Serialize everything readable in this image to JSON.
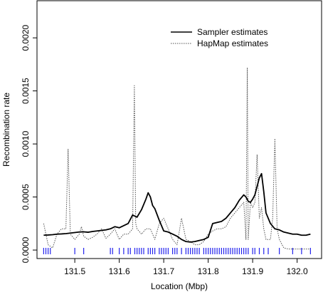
{
  "chart_data": {
    "type": "line",
    "title": "",
    "xlabel": "Location (Mbp)",
    "ylabel": "Recombination rate",
    "xlim": [
      131.415,
      132.055
    ],
    "ylim": [
      -8e-05,
      0.00235
    ],
    "xticks": [
      {
        "value": 131.5,
        "label": "131.5"
      },
      {
        "value": 131.6,
        "label": "131.6"
      },
      {
        "value": 131.7,
        "label": "131.7"
      },
      {
        "value": 131.8,
        "label": "131.8"
      },
      {
        "value": 131.9,
        "label": "131.9"
      },
      {
        "value": 132.0,
        "label": "132.0"
      }
    ],
    "yticks": [
      {
        "value": 0.0,
        "label": "0.0000"
      },
      {
        "value": 0.0005,
        "label": "0.0005"
      },
      {
        "value": 0.001,
        "label": "0.0010"
      },
      {
        "value": 0.0015,
        "label": "0.0015"
      },
      {
        "value": 0.002,
        "label": "0.0020"
      }
    ],
    "grid": false,
    "legend_position": "top-right",
    "series": [
      {
        "name": "Sampler estimates",
        "style": "solid",
        "color": "#000000",
        "x": [
          131.43,
          131.44,
          131.45,
          131.46,
          131.47,
          131.48,
          131.49,
          131.5,
          131.51,
          131.52,
          131.53,
          131.54,
          131.55,
          131.56,
          131.57,
          131.58,
          131.59,
          131.6,
          131.61,
          131.62,
          131.63,
          131.64,
          131.65,
          131.66,
          131.665,
          131.67,
          131.675,
          131.68,
          131.69,
          131.7,
          131.71,
          131.72,
          131.73,
          131.74,
          131.75,
          131.76,
          131.77,
          131.78,
          131.79,
          131.8,
          131.81,
          131.82,
          131.83,
          131.84,
          131.85,
          131.86,
          131.87,
          131.88,
          131.885,
          131.89,
          131.895,
          131.9,
          131.905,
          131.91,
          131.915,
          131.92,
          131.925,
          131.93,
          131.94,
          131.95,
          131.96,
          131.97,
          131.98,
          131.99,
          132.0,
          132.01,
          132.02,
          132.03
        ],
        "y": [
          0.00014,
          0.000142,
          0.000145,
          0.00015,
          0.000152,
          0.000155,
          0.00016,
          0.000165,
          0.00017,
          0.000172,
          0.000168,
          0.000175,
          0.00018,
          0.000185,
          0.00019,
          0.0002,
          0.00022,
          0.00021,
          0.00023,
          0.00025,
          0.00033,
          0.00031,
          0.00038,
          0.00048,
          0.00054,
          0.0005,
          0.00042,
          0.00039,
          0.00028,
          0.00018,
          0.00017,
          0.00015,
          0.00013,
          0.0001,
          8e-05,
          7.5e-05,
          8e-05,
          9e-05,
          0.0001,
          0.00012,
          0.00025,
          0.00026,
          0.00027,
          0.0003,
          0.00035,
          0.0004,
          0.00047,
          0.00052,
          0.0005,
          0.00046,
          0.00045,
          0.00048,
          0.00052,
          0.0006,
          0.00068,
          0.00072,
          0.00055,
          0.00035,
          0.00025,
          0.0002,
          0.00019,
          0.00017,
          0.00016,
          0.00015,
          0.00015,
          0.00014,
          0.00014,
          0.00015
        ]
      },
      {
        "name": "HapMap estimates",
        "style": "dotted",
        "color": "#555555",
        "x": [
          131.43,
          131.44,
          131.45,
          131.46,
          131.47,
          131.48,
          131.485,
          131.49,
          131.5,
          131.51,
          131.515,
          131.52,
          131.53,
          131.54,
          131.55,
          131.56,
          131.57,
          131.58,
          131.59,
          131.6,
          131.61,
          131.62,
          131.63,
          131.634,
          131.637,
          131.64,
          131.65,
          131.66,
          131.67,
          131.68,
          131.69,
          131.7,
          131.71,
          131.72,
          131.73,
          131.74,
          131.75,
          131.76,
          131.77,
          131.78,
          131.79,
          131.8,
          131.81,
          131.82,
          131.83,
          131.84,
          131.85,
          131.86,
          131.87,
          131.88,
          131.885,
          131.888,
          131.89,
          131.895,
          131.9,
          131.905,
          131.91,
          131.915,
          131.92,
          131.925,
          131.93,
          131.94,
          131.945,
          131.95,
          131.955,
          131.96,
          131.97,
          131.98,
          131.99,
          132.0,
          132.01,
          132.02,
          132.03
        ],
        "y": [
          0.00025,
          5e-05,
          2e-05,
          0.00015,
          0.0002,
          0.0002,
          0.00095,
          0.00015,
          0.0001,
          0.00015,
          0.00022,
          0.00013,
          0.0001,
          0.00012,
          0.00015,
          0.0002,
          0.00011,
          0.00015,
          0.0002,
          0.0001,
          0.00015,
          0.00015,
          0.0002,
          0.00155,
          0.00025,
          0.0002,
          0.00015,
          0.0002,
          0.0002,
          0.0001,
          0.00025,
          0.0003,
          0.0002,
          0.0001,
          5e-05,
          0.0003,
          0.0001,
          8e-05,
          5e-05,
          5e-05,
          8e-05,
          0.00015,
          0.00018,
          0.0002,
          0.0002,
          0.00022,
          0.0003,
          0.00035,
          0.0004,
          0.00045,
          0.0001,
          0.00172,
          0.0001,
          0.00045,
          0.0004,
          0.00045,
          0.0009,
          0.0003,
          0.0004,
          0.0002,
          0.0001,
          0.0001,
          0.0003,
          0.00105,
          0.0002,
          0.0001,
          2e-05,
          1e-05,
          1e-05,
          1e-05,
          1e-05,
          1e-05,
          1e-05
        ]
      }
    ],
    "marker_positions": [
      131.43,
      131.435,
      131.44,
      131.445,
      131.5,
      131.52,
      131.58,
      131.585,
      131.6,
      131.61,
      131.62,
      131.625,
      131.635,
      131.64,
      131.645,
      131.65,
      131.655,
      131.665,
      131.67,
      131.675,
      131.68,
      131.69,
      131.695,
      131.7,
      131.705,
      131.71,
      131.72,
      131.725,
      131.73,
      131.74,
      131.75,
      131.755,
      131.76,
      131.765,
      131.77,
      131.775,
      131.78,
      131.79,
      131.795,
      131.8,
      131.805,
      131.81,
      131.815,
      131.82,
      131.825,
      131.83,
      131.835,
      131.84,
      131.845,
      131.85,
      131.855,
      131.86,
      131.865,
      131.87,
      131.875,
      131.88,
      131.885,
      131.89,
      131.9,
      131.905,
      131.915,
      131.925,
      131.935,
      131.96,
      131.99,
      132.01,
      132.03
    ],
    "marker_color": "#2222ee"
  }
}
